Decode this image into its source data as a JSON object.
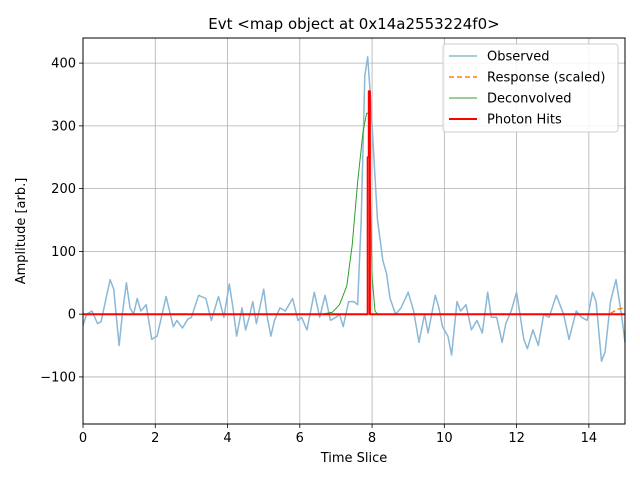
{
  "chart_data": {
    "type": "line",
    "title": "Evt <map object at 0x14a2553224f0>",
    "xlabel": "Time Slice",
    "ylabel": "Amplitude [arb.]",
    "xlim": [
      0,
      15
    ],
    "ylim": [
      -175,
      440
    ],
    "xticks": [
      0,
      2,
      4,
      6,
      8,
      10,
      12,
      14
    ],
    "yticks": [
      -100,
      0,
      100,
      200,
      300,
      400
    ],
    "grid": true,
    "legend_position": "top-right",
    "series": [
      {
        "name": "Observed",
        "color": "#8bb8d6",
        "points": [
          [
            0,
            -18
          ],
          [
            0.1,
            0
          ],
          [
            0.25,
            5
          ],
          [
            0.4,
            -15
          ],
          [
            0.5,
            -12
          ],
          [
            0.6,
            15
          ],
          [
            0.75,
            55
          ],
          [
            0.85,
            40
          ],
          [
            1.0,
            -50
          ],
          [
            1.1,
            5
          ],
          [
            1.2,
            50
          ],
          [
            1.3,
            10
          ],
          [
            1.4,
            0
          ],
          [
            1.5,
            25
          ],
          [
            1.6,
            5
          ],
          [
            1.75,
            15
          ],
          [
            1.9,
            -40
          ],
          [
            2.05,
            -35
          ],
          [
            2.3,
            28
          ],
          [
            2.5,
            -20
          ],
          [
            2.6,
            -10
          ],
          [
            2.75,
            -22
          ],
          [
            2.9,
            -8
          ],
          [
            3.0,
            -5
          ],
          [
            3.2,
            30
          ],
          [
            3.4,
            25
          ],
          [
            3.55,
            -10
          ],
          [
            3.75,
            28
          ],
          [
            3.9,
            -5
          ],
          [
            4.05,
            48
          ],
          [
            4.15,
            10
          ],
          [
            4.25,
            -35
          ],
          [
            4.35,
            -5
          ],
          [
            4.4,
            10
          ],
          [
            4.5,
            -25
          ],
          [
            4.6,
            -5
          ],
          [
            4.7,
            20
          ],
          [
            4.8,
            -15
          ],
          [
            5.0,
            40
          ],
          [
            5.1,
            -5
          ],
          [
            5.2,
            -35
          ],
          [
            5.3,
            -10
          ],
          [
            5.45,
            10
          ],
          [
            5.6,
            5
          ],
          [
            5.8,
            25
          ],
          [
            5.95,
            -10
          ],
          [
            6.05,
            -5
          ],
          [
            6.2,
            -25
          ],
          [
            6.4,
            35
          ],
          [
            6.55,
            -5
          ],
          [
            6.7,
            30
          ],
          [
            6.85,
            -10
          ],
          [
            7.0,
            -5
          ],
          [
            7.1,
            0
          ],
          [
            7.2,
            -20
          ],
          [
            7.35,
            20
          ],
          [
            7.5,
            20
          ],
          [
            7.6,
            15
          ],
          [
            7.7,
            150
          ],
          [
            7.8,
            380
          ],
          [
            7.88,
            410
          ],
          [
            7.95,
            350
          ],
          [
            8.05,
            250
          ],
          [
            8.15,
            150
          ],
          [
            8.3,
            85
          ],
          [
            8.4,
            65
          ],
          [
            8.5,
            25
          ],
          [
            8.65,
            0
          ],
          [
            8.8,
            10
          ],
          [
            9.0,
            35
          ],
          [
            9.15,
            5
          ],
          [
            9.3,
            -45
          ],
          [
            9.45,
            0
          ],
          [
            9.55,
            -30
          ],
          [
            9.75,
            30
          ],
          [
            9.85,
            10
          ],
          [
            9.95,
            -20
          ],
          [
            10.1,
            -35
          ],
          [
            10.2,
            -65
          ],
          [
            10.35,
            20
          ],
          [
            10.45,
            5
          ],
          [
            10.6,
            15
          ],
          [
            10.75,
            -25
          ],
          [
            10.9,
            -10
          ],
          [
            11.05,
            -30
          ],
          [
            11.2,
            35
          ],
          [
            11.3,
            -5
          ],
          [
            11.45,
            -5
          ],
          [
            11.6,
            -45
          ],
          [
            11.7,
            -15
          ],
          [
            11.85,
            5
          ],
          [
            12.0,
            35
          ],
          [
            12.2,
            -40
          ],
          [
            12.3,
            -55
          ],
          [
            12.45,
            -25
          ],
          [
            12.6,
            -50
          ],
          [
            12.75,
            0
          ],
          [
            12.9,
            -5
          ],
          [
            13.1,
            30
          ],
          [
            13.3,
            0
          ],
          [
            13.45,
            -40
          ],
          [
            13.65,
            5
          ],
          [
            13.8,
            -5
          ],
          [
            13.95,
            -10
          ],
          [
            14.1,
            35
          ],
          [
            14.2,
            20
          ],
          [
            14.35,
            -75
          ],
          [
            14.45,
            -60
          ],
          [
            14.6,
            20
          ],
          [
            14.75,
            55
          ],
          [
            14.9,
            0
          ],
          [
            15.0,
            -45
          ]
        ]
      },
      {
        "name": "Response (scaled)",
        "color": "#ff7f0e",
        "points": [
          [
            0,
            0
          ],
          [
            14.55,
            0
          ],
          [
            14.65,
            3
          ],
          [
            14.8,
            8
          ],
          [
            15.0,
            10
          ]
        ]
      },
      {
        "name": "Deconvolved",
        "color": "#2ca02c",
        "points": [
          [
            0,
            0
          ],
          [
            6.6,
            0
          ],
          [
            6.9,
            3
          ],
          [
            7.1,
            15
          ],
          [
            7.3,
            45
          ],
          [
            7.45,
            110
          ],
          [
            7.6,
            210
          ],
          [
            7.75,
            290
          ],
          [
            7.85,
            320
          ],
          [
            7.9,
            320
          ],
          [
            7.95,
            200
          ],
          [
            8.0,
            60
          ],
          [
            8.08,
            5
          ],
          [
            8.15,
            0
          ],
          [
            15.0,
            0
          ]
        ]
      },
      {
        "name": "Photon Hits",
        "color": "#ff0000",
        "points": [
          [
            0,
            0
          ],
          [
            7.88,
            0
          ],
          [
            7.88,
            250
          ],
          [
            7.91,
            250
          ],
          [
            7.91,
            355
          ],
          [
            7.94,
            355
          ],
          [
            7.94,
            0
          ],
          [
            15.0,
            0
          ]
        ]
      }
    ]
  }
}
